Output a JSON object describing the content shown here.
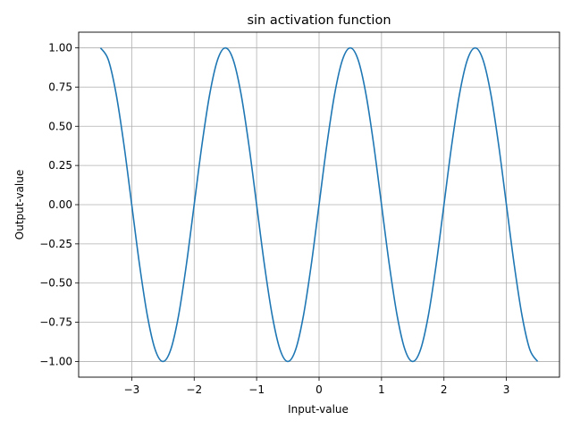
{
  "chart_data": {
    "type": "line",
    "title": "sin activation function",
    "xlabel": "Input-value",
    "ylabel": "Output-value",
    "xlim": [
      -3.85,
      3.85
    ],
    "ylim": [
      -1.1,
      1.1
    ],
    "grid": true,
    "x_ticks": [
      {
        "value": -3,
        "label": "−3"
      },
      {
        "value": -2,
        "label": "−2"
      },
      {
        "value": -1,
        "label": "−1"
      },
      {
        "value": 0,
        "label": "0"
      },
      {
        "value": 1,
        "label": "1"
      },
      {
        "value": 2,
        "label": "2"
      },
      {
        "value": 3,
        "label": "3"
      }
    ],
    "y_ticks": [
      {
        "value": -1.0,
        "label": "−1.00"
      },
      {
        "value": -0.75,
        "label": "−0.75"
      },
      {
        "value": -0.5,
        "label": "−0.50"
      },
      {
        "value": -0.25,
        "label": "−0.25"
      },
      {
        "value": 0.0,
        "label": "0.00"
      },
      {
        "value": 0.25,
        "label": "0.25"
      },
      {
        "value": 0.5,
        "label": "0.50"
      },
      {
        "value": 0.75,
        "label": "0.75"
      },
      {
        "value": 1.0,
        "label": "1.00"
      }
    ],
    "series": [
      {
        "color": "#1f77b4",
        "x": [
          -3.5,
          -3.375,
          -3.25,
          -3.125,
          -3.0,
          -2.875,
          -2.75,
          -2.625,
          -2.5,
          -2.375,
          -2.25,
          -2.125,
          -2.0,
          -1.875,
          -1.75,
          -1.625,
          -1.5,
          -1.375,
          -1.25,
          -1.125,
          -1.0,
          -0.875,
          -0.75,
          -0.625,
          -0.5,
          -0.375,
          -0.25,
          -0.125,
          0.0,
          0.125,
          0.25,
          0.375,
          0.5,
          0.625,
          0.75,
          0.875,
          1.0,
          1.125,
          1.25,
          1.375,
          1.5,
          1.625,
          1.75,
          1.875,
          2.0,
          2.125,
          2.25,
          2.375,
          2.5,
          2.625,
          2.75,
          2.875,
          3.0,
          3.125,
          3.25,
          3.375,
          3.5
        ],
        "y": [
          1.0,
          0.924,
          0.707,
          0.383,
          0.0,
          -0.383,
          -0.707,
          -0.924,
          -1.0,
          -0.924,
          -0.707,
          -0.383,
          0.0,
          0.383,
          0.707,
          0.924,
          1.0,
          0.924,
          0.707,
          0.383,
          0.0,
          -0.383,
          -0.707,
          -0.924,
          -1.0,
          -0.924,
          -0.707,
          -0.383,
          0.0,
          0.383,
          0.707,
          0.924,
          1.0,
          0.924,
          0.707,
          0.383,
          0.0,
          -0.383,
          -0.707,
          -0.924,
          -1.0,
          -0.924,
          -0.707,
          -0.383,
          0.0,
          0.383,
          0.707,
          0.924,
          1.0,
          0.924,
          0.707,
          0.383,
          0.0,
          -0.383,
          -0.707,
          -0.924,
          -1.0
        ]
      }
    ]
  }
}
